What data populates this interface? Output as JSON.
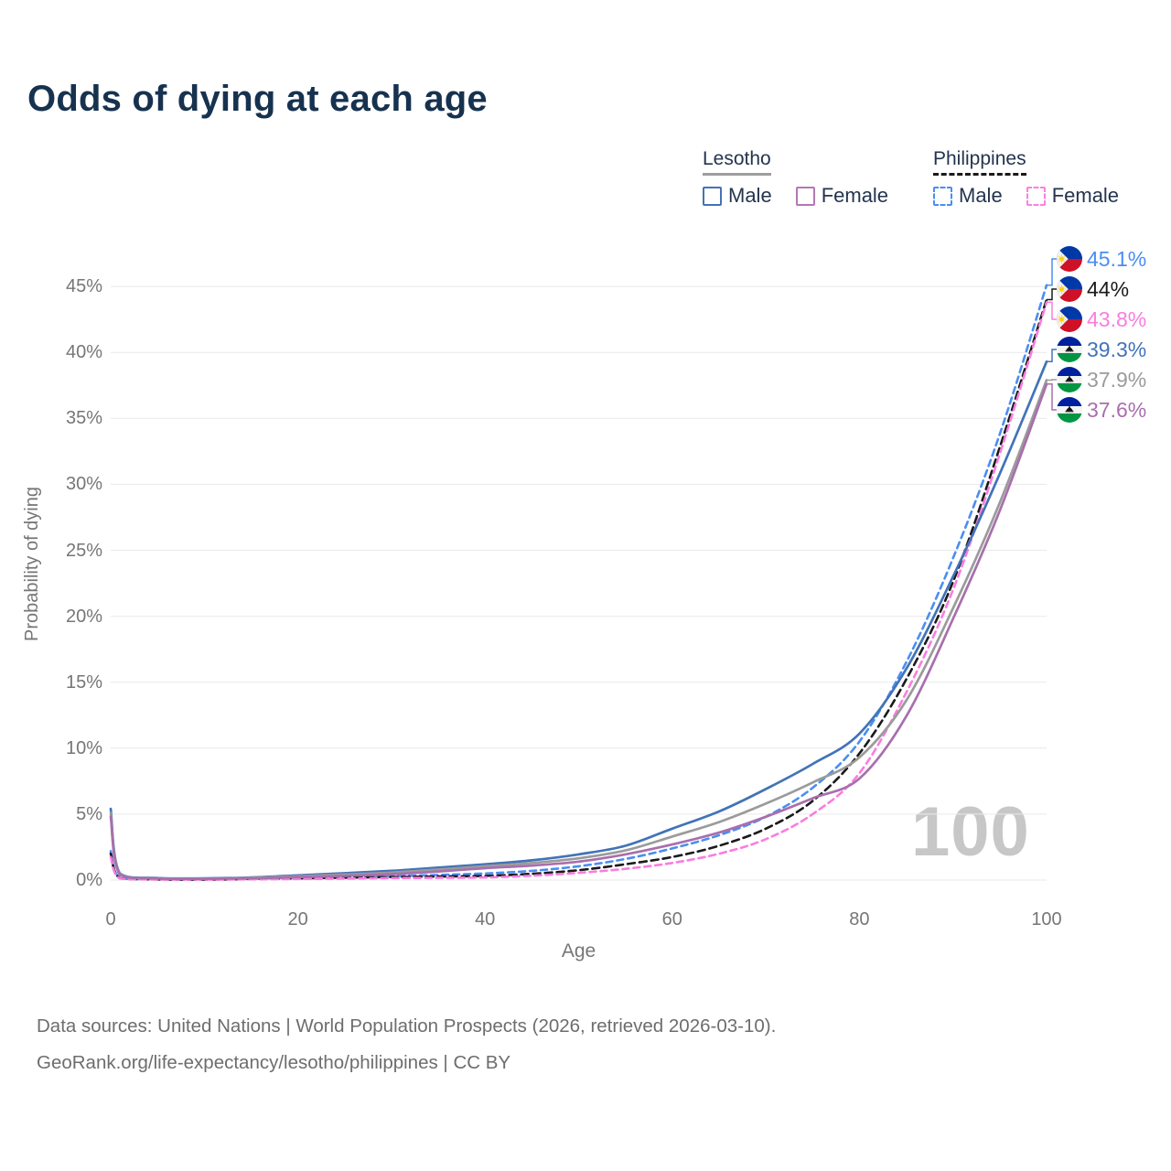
{
  "title": "Odds of dying at each age",
  "watermark": "100",
  "legend": {
    "groups": [
      {
        "name": "Lesotho",
        "rule_style": "solid",
        "rule_color": "#9e9e9e",
        "swatch_style": "solid",
        "items": [
          {
            "label": "Male",
            "color": "#4472b9"
          },
          {
            "label": "Female",
            "color": "#b477b4"
          }
        ]
      },
      {
        "name": "Philippines",
        "rule_style": "dashed",
        "rule_color": "#1a1a1a",
        "swatch_style": "dashed",
        "items": [
          {
            "label": "Male",
            "color": "#4a8ef2"
          },
          {
            "label": "Female",
            "color": "#fb80e1"
          }
        ]
      }
    ]
  },
  "chart_data": {
    "type": "line",
    "title": "Odds of dying at each age",
    "xlabel": "Age",
    "ylabel": "Probability of dying",
    "xlim": [
      0,
      100
    ],
    "ylim_percent": [
      0,
      47
    ],
    "grid": "horizontal",
    "x_ticks": [
      0,
      20,
      40,
      60,
      80,
      100
    ],
    "y_tick_values": [
      0,
      5,
      10,
      15,
      20,
      25,
      30,
      35,
      40,
      45
    ],
    "y_tick_labels": [
      "0%",
      "5%",
      "10%",
      "15%",
      "20%",
      "25%",
      "30%",
      "35%",
      "40%",
      "45%"
    ],
    "unit": "percent probability of dying at each age",
    "ages": [
      0,
      1,
      5,
      10,
      15,
      20,
      25,
      30,
      35,
      40,
      45,
      50,
      55,
      60,
      65,
      70,
      75,
      80,
      85,
      90,
      95,
      100
    ],
    "series": [
      {
        "name": "Philippines Male",
        "country": "Philippines",
        "sex": "Male",
        "flag": "philippines",
        "line_style": "dashed",
        "color": "#4a8ef2",
        "end_label": "45.1%",
        "end_value": 45.1,
        "values": [
          2.2,
          0.16,
          0.06,
          0.05,
          0.1,
          0.18,
          0.24,
          0.3,
          0.39,
          0.5,
          0.7,
          1.05,
          1.6,
          2.4,
          3.4,
          4.8,
          7.0,
          10.5,
          16.5,
          24.4,
          33.8,
          45.1
        ]
      },
      {
        "name": "Philippines Both sexes",
        "country": "Philippines",
        "sex": "Both",
        "flag": "philippines",
        "line_style": "dashed",
        "color": "#1a1a1a",
        "end_label": "44%",
        "end_value": 44,
        "values": [
          2.0,
          0.14,
          0.05,
          0.04,
          0.08,
          0.13,
          0.18,
          0.23,
          0.27,
          0.32,
          0.48,
          0.75,
          1.2,
          1.75,
          2.6,
          3.9,
          6.0,
          9.6,
          15.2,
          22.6,
          32.8,
          44.0
        ]
      },
      {
        "name": "Philippines Female",
        "country": "Philippines",
        "sex": "Female",
        "flag": "philippines",
        "line_style": "dashed",
        "color": "#fb7ce0",
        "end_label": "43.8%",
        "end_value": 43.8,
        "values": [
          1.75,
          0.12,
          0.045,
          0.035,
          0.055,
          0.08,
          0.11,
          0.15,
          0.17,
          0.2,
          0.33,
          0.55,
          0.85,
          1.3,
          2.0,
          3.1,
          5.0,
          8.1,
          14.2,
          22.0,
          32.3,
          43.8
        ]
      },
      {
        "name": "Lesotho Male",
        "country": "Lesotho",
        "sex": "Male",
        "flag": "lesotho",
        "line_style": "solid",
        "color": "#4273b8",
        "end_label": "39.3%",
        "end_value": 39.3,
        "values": [
          5.4,
          0.5,
          0.16,
          0.13,
          0.2,
          0.36,
          0.52,
          0.7,
          0.95,
          1.2,
          1.5,
          1.95,
          2.6,
          3.9,
          5.2,
          6.9,
          8.8,
          11.1,
          16.0,
          23.0,
          30.8,
          39.3
        ]
      },
      {
        "name": "Lesotho Both sexes",
        "country": "Lesotho",
        "sex": "Both",
        "flag": "lesotho",
        "line_style": "solid",
        "color": "#9b9b9b",
        "end_label": "37.9%",
        "end_value": 37.9,
        "values": [
          5.1,
          0.45,
          0.14,
          0.11,
          0.17,
          0.29,
          0.42,
          0.57,
          0.8,
          1.05,
          1.3,
          1.65,
          2.25,
          3.3,
          4.4,
          5.8,
          7.4,
          9.3,
          13.6,
          20.6,
          28.6,
          37.9
        ]
      },
      {
        "name": "Lesotho Female",
        "country": "Lesotho",
        "sex": "Female",
        "flag": "lesotho",
        "line_style": "solid",
        "color": "#a86fad",
        "end_label": "37.6%",
        "end_value": 37.6,
        "values": [
          4.8,
          0.4,
          0.12,
          0.1,
          0.13,
          0.22,
          0.32,
          0.45,
          0.65,
          0.9,
          1.1,
          1.4,
          1.95,
          2.7,
          3.6,
          4.8,
          6.2,
          7.7,
          12.4,
          19.8,
          28.0,
          37.6
        ]
      }
    ]
  },
  "footer": {
    "line1": "Data sources: United Nations | World Population Prospects (2026, retrieved 2026-03-10).",
    "line2": "GeoRank.org/life-expectancy/lesotho/philippines | CC BY"
  }
}
